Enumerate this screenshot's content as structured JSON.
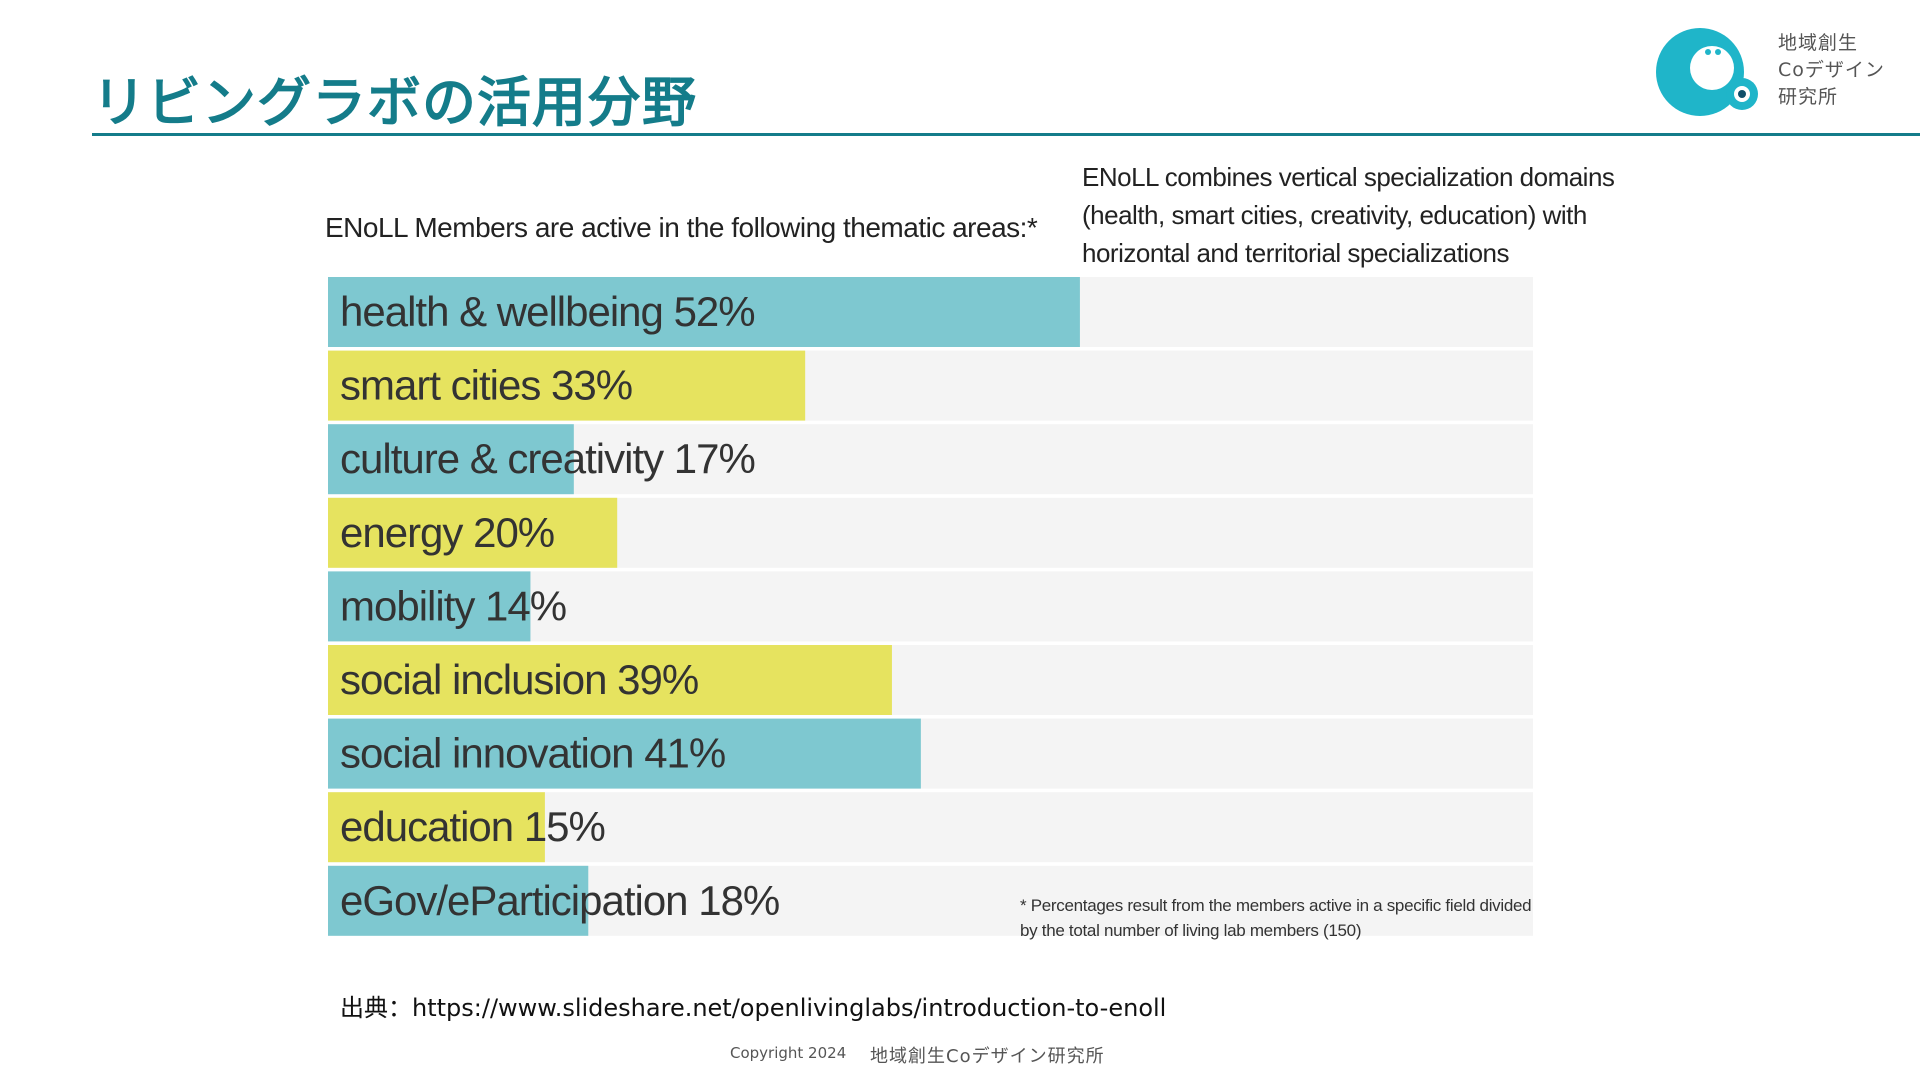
{
  "slide": {
    "title": "リビングラボの活用分野",
    "source": "出典：https://www.slideshare.net/openlivinglabs/introduction-to-enoll",
    "copyright": "Copyright 2024",
    "copyright_org": "地域創生Coデザイン研究所"
  },
  "logo": {
    "text": "地域創生\nCoデザイン\n研究所",
    "color": "#1fb5c9"
  },
  "chart_data": {
    "type": "bar",
    "orientation": "horizontal",
    "title": "ENoLL Members are active in the following thematic areas:*",
    "note": "ENoLL combines vertical specialization domains (health, smart cities, creativity, education) with horizontal and territorial specializations",
    "footnote": "* Percentages result from the members active in a specific field divided by the total number of living lab members (150)",
    "xlim": [
      0,
      100
    ],
    "categories": [
      {
        "name": "health & wellbeing",
        "value": 52,
        "label": "health & wellbeing 52%",
        "color": "#7ec8d0"
      },
      {
        "name": "smart cities",
        "value": 33,
        "label": "smart cities 33%",
        "color": "#e6e35f"
      },
      {
        "name": "culture & creativity",
        "value": 17,
        "label": "culture & creativity 17%",
        "color": "#7ec8d0"
      },
      {
        "name": "energy",
        "value": 20,
        "label": "energy 20%",
        "color": "#e6e35f"
      },
      {
        "name": "mobility",
        "value": 14,
        "label": "mobility 14%",
        "color": "#7ec8d0"
      },
      {
        "name": "social inclusion",
        "value": 39,
        "label": "social inclusion 39%",
        "color": "#e6e35f"
      },
      {
        "name": "social innovation",
        "value": 41,
        "label": "social innovation 41%",
        "color": "#7ec8d0"
      },
      {
        "name": "education",
        "value": 15,
        "label": "education 15%",
        "color": "#e6e35f"
      },
      {
        "name": "eGov/eParticipation",
        "value": 18,
        "label": "eGov/eParticipation 18%",
        "color": "#7ec8d0"
      }
    ],
    "track_color": "#f4f4f4"
  }
}
